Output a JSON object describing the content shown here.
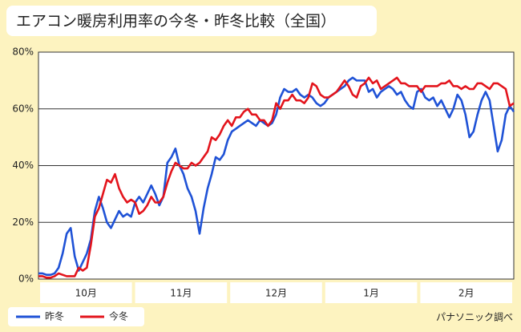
{
  "chart_data": {
    "type": "line",
    "title": "エアコン暖房利用率の今冬・昨冬比較（全国）",
    "source": "パナソニック調べ",
    "x_axis_labels": [
      "10月",
      "11月",
      "12月",
      "1月",
      "2月"
    ],
    "ylim": [
      0,
      80
    ],
    "yticks": [
      {
        "value": 0,
        "label": "0%"
      },
      {
        "value": 20,
        "label": "20%"
      },
      {
        "value": 40,
        "label": "40%"
      },
      {
        "value": 60,
        "label": "60%"
      },
      {
        "value": 80,
        "label": "80%"
      }
    ],
    "grid": true,
    "legend": "bottom-left",
    "series": [
      {
        "name": "昨冬",
        "color": "#1f52d6",
        "values": [
          2,
          2,
          1.5,
          1.5,
          2,
          4,
          9,
          16,
          18,
          8,
          3,
          6,
          9,
          14,
          24,
          29,
          25,
          20,
          18,
          21,
          24,
          22,
          23,
          22,
          27,
          29,
          27,
          30,
          33,
          30,
          26,
          29,
          41,
          43,
          46,
          40,
          37,
          32,
          29,
          24,
          16,
          25,
          32,
          37,
          43,
          42,
          44,
          49,
          52,
          53,
          54,
          55,
          56,
          55,
          54,
          56,
          55,
          54,
          55,
          58,
          64,
          67,
          66,
          66,
          67,
          65,
          64,
          65,
          64,
          62,
          61,
          62,
          64,
          65,
          66,
          67,
          68,
          70,
          71,
          70,
          70,
          70,
          66,
          67,
          64,
          66,
          67,
          68,
          67,
          65,
          66,
          63,
          61,
          60,
          66,
          67,
          64,
          63,
          64,
          61,
          63,
          60,
          57,
          60,
          65,
          63,
          58,
          50,
          52,
          58,
          63,
          66,
          63,
          54,
          45,
          49,
          58,
          61,
          59
        ]
      },
      {
        "name": "今冬",
        "color": "#e3141c",
        "values": [
          1,
          1,
          0.5,
          0.5,
          1,
          2,
          1.5,
          1,
          1,
          1,
          4,
          3,
          4,
          12,
          22,
          25,
          30,
          35,
          34,
          37,
          32,
          29,
          27,
          28,
          27,
          23,
          24,
          26,
          29,
          27,
          27,
          29,
          34,
          38,
          41,
          40,
          39,
          39,
          41,
          40,
          41,
          43,
          45,
          50,
          49,
          51,
          54,
          56,
          54,
          57,
          57,
          59,
          60,
          58,
          58,
          56,
          56,
          54,
          56,
          62,
          60,
          63,
          63,
          65,
          63,
          63,
          62,
          64,
          69,
          68,
          65,
          64,
          64,
          65,
          66,
          68,
          70,
          68,
          65,
          64,
          68,
          69,
          71,
          69,
          70,
          67,
          68,
          69,
          70,
          71,
          69,
          69,
          68,
          68,
          68,
          66,
          68,
          68,
          68,
          68,
          69,
          69,
          70,
          68,
          68,
          67,
          68,
          67,
          67,
          69,
          69,
          68,
          67,
          69,
          69,
          68,
          67,
          61,
          62
        ]
      }
    ]
  }
}
